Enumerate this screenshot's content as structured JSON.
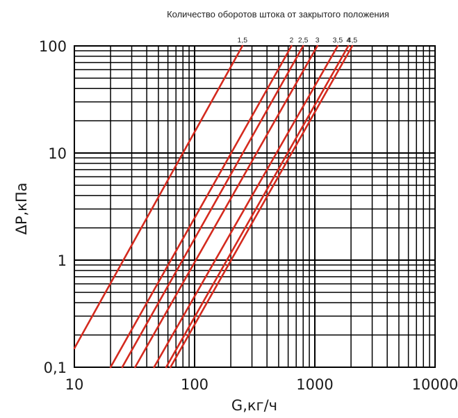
{
  "chart_data": {
    "type": "line",
    "title": "Количество оборотов штока от закрытого положения",
    "xlabel": "G,кг/ч",
    "ylabel": "ΔP,кПа",
    "x_scale": "log",
    "y_scale": "log",
    "xlim": [
      10,
      10000
    ],
    "ylim": [
      0.1,
      100
    ],
    "x_ticks": [
      {
        "value": 10,
        "label": "10"
      },
      {
        "value": 100,
        "label": "100"
      },
      {
        "value": 1000,
        "label": "1000"
      },
      {
        "value": 10000,
        "label": "10000"
      }
    ],
    "y_ticks": [
      {
        "value": 0.1,
        "label": "0,1"
      },
      {
        "value": 1,
        "label": "1"
      },
      {
        "value": 10,
        "label": "10"
      },
      {
        "value": 100,
        "label": "100"
      }
    ],
    "grid": true,
    "line_color": "#d42a1e",
    "grid_color": "#000000",
    "series": [
      {
        "label": "1,5",
        "x": [
          10,
          250
        ],
        "y": [
          0.15,
          100
        ]
      },
      {
        "label": "2",
        "x": [
          20,
          640
        ],
        "y": [
          0.1,
          100
        ]
      },
      {
        "label": "2,5",
        "x": [
          25,
          800
        ],
        "y": [
          0.1,
          100
        ]
      },
      {
        "label": "3",
        "x": [
          32,
          1050
        ],
        "y": [
          0.1,
          100
        ]
      },
      {
        "label": "3,5",
        "x": [
          46,
          1550
        ],
        "y": [
          0.1,
          100
        ]
      },
      {
        "label": "4",
        "x": [
          58,
          1900
        ],
        "y": [
          0.1,
          100
        ]
      },
      {
        "label": "4,5",
        "x": [
          63,
          2050
        ],
        "y": [
          0.1,
          100
        ]
      }
    ]
  }
}
